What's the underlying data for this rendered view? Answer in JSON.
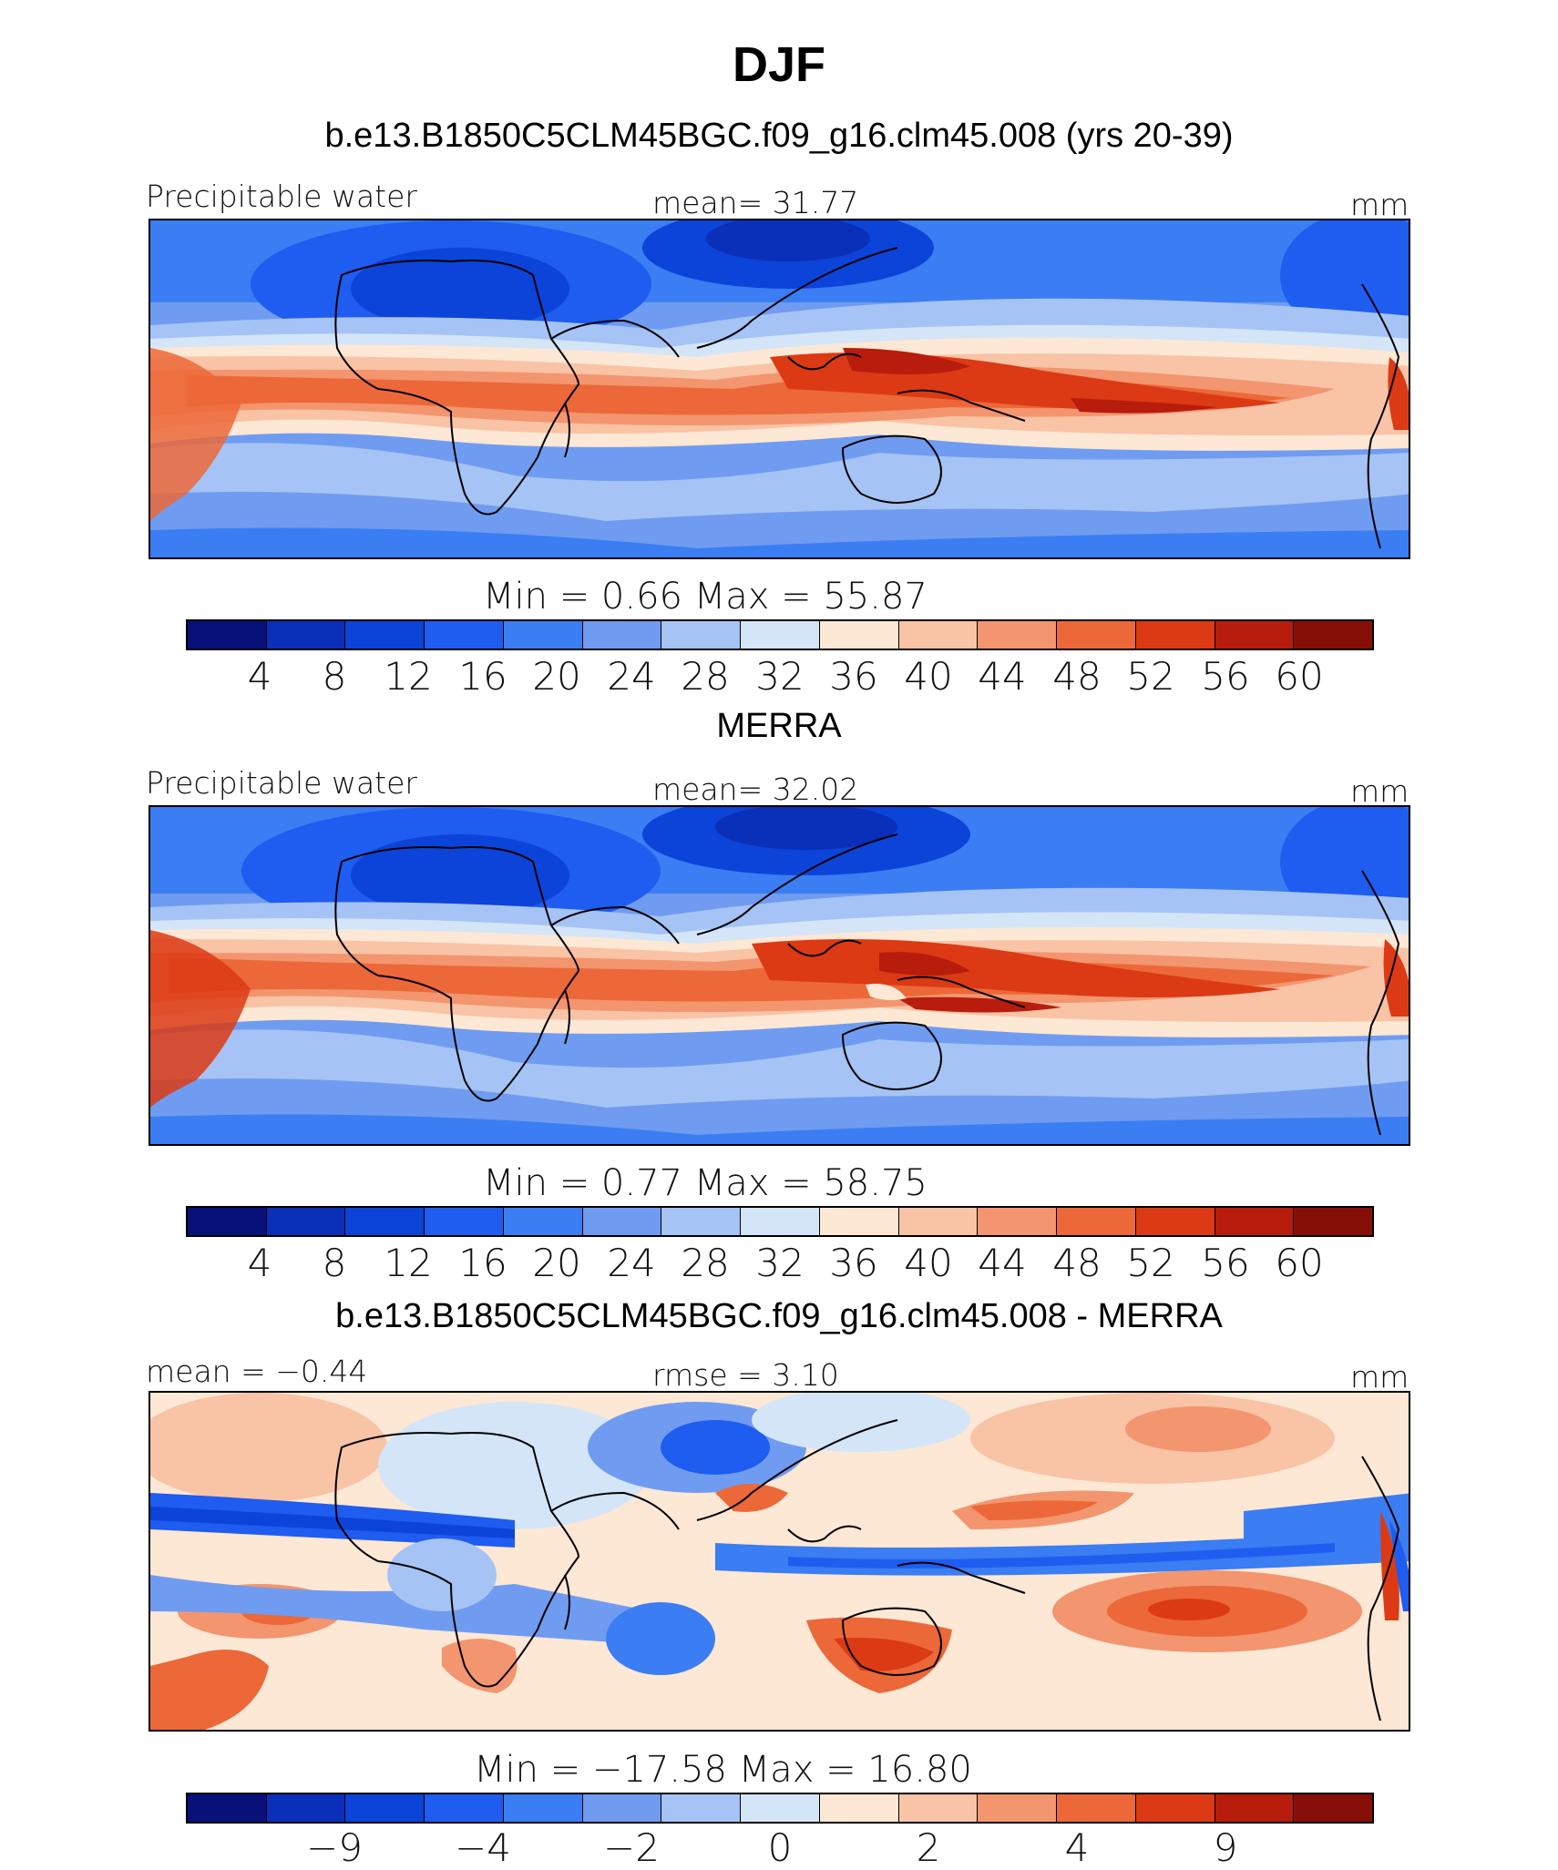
{
  "title": "DJF",
  "palette": [
    "#08107a",
    "#0a2fb8",
    "#0c43d8",
    "#1f5cf0",
    "#3b7df2",
    "#6f9cf0",
    "#a5c3f4",
    "#d4e5f8",
    "#fde7d5",
    "#f9c3a6",
    "#f3956f",
    "#ec6838",
    "#dc3a14",
    "#b71c0c",
    "#861008"
  ],
  "panels": [
    {
      "subtitle": "b.e13.B1850C5CLM45BGC.f09_g16.clm45.008 (yrs 20-39)",
      "left_label": "Precipitable water",
      "center_label": "mean=   31.77",
      "right_label": "mm",
      "minmax": "Min  =     0.66  Max  =     55.87",
      "ticks": [
        "4",
        "8",
        "12",
        "16",
        "20",
        "24",
        "28",
        "32",
        "36",
        "40",
        "44",
        "48",
        "52",
        "56",
        "60"
      ],
      "kind": "field"
    },
    {
      "subtitle": "MERRA",
      "left_label": "Precipitable water",
      "center_label": "mean=   32.02",
      "right_label": "mm",
      "minmax": "Min  =     0.77  Max  =     58.75",
      "ticks": [
        "4",
        "8",
        "12",
        "16",
        "20",
        "24",
        "28",
        "32",
        "36",
        "40",
        "44",
        "48",
        "52",
        "56",
        "60"
      ],
      "kind": "field"
    },
    {
      "subtitle": "b.e13.B1850C5CLM45BGC.f09_g16.clm45.008 - MERRA",
      "left_label": "mean  =   −0.44",
      "center_label": "rmse  =     3.10",
      "right_label": "mm",
      "minmax": "Min  =  −17.58  Max  =    16.80",
      "ticks": [
        "−9",
        "−4",
        "−2",
        "0",
        "2",
        "4",
        "9"
      ],
      "kind": "diff"
    }
  ]
}
